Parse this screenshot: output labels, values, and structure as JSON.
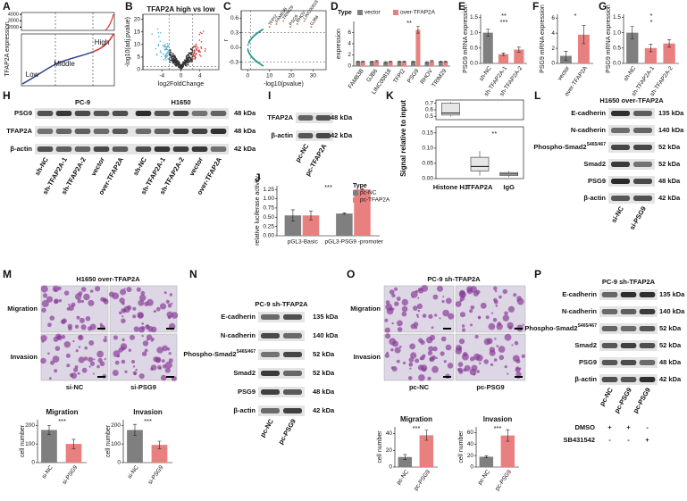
{
  "panels": {
    "A": {
      "letter": "A",
      "ylabel": "TFAP2A expression",
      "ylim": [
        1500,
        4300
      ],
      "yticks": [
        2000,
        3000,
        4000
      ],
      "groups": [
        "Low",
        "Middle",
        "High"
      ]
    },
    "B": {
      "letter": "B",
      "title": "TFAP2A high vs low",
      "xlabel": "log2FoldChange",
      "ylabel": "-log10(adj.pvalue)",
      "xlim": [
        -8,
        8
      ],
      "xticks": [
        -4,
        0,
        4
      ],
      "ylim": [
        0,
        22
      ],
      "yticks": [
        0,
        5,
        10,
        15,
        20
      ]
    },
    "C": {
      "letter": "C",
      "xlabel": "-log10(pvalue)",
      "ylabel": "r",
      "xlim": [
        -3,
        36
      ],
      "xticks": [
        0,
        10,
        20,
        30
      ],
      "ylim": [
        -0.45,
        0.75
      ],
      "yticks": [
        -0.3,
        {
          "value": 0,
          "label": "0.0"
        },
        0.3,
        0.6
      ],
      "genes": [
        "TFPI2",
        "FAM83B",
        "TRIM29",
        "PSG9",
        "RHOV",
        "LINC00818",
        "GJB6"
      ]
    },
    "D": {
      "letter": "D",
      "legend_title": "Type",
      "ylabel": "expression",
      "categories": [
        "FAM83B",
        "GJB6",
        "LINC00818",
        "TFPI2",
        "PSG9",
        "RHOV",
        "TRIM29"
      ],
      "series": [
        {
          "name": "vector",
          "color": "#7f7f7f",
          "values": [
            0.8,
            0.8,
            0.7,
            0.8,
            0.8,
            0.7,
            0.8
          ],
          "errors": [
            0.1,
            0.1,
            0.1,
            0.1,
            0.1,
            0.1,
            0.1
          ]
        },
        {
          "name": "over-TFAP2A",
          "color": "#e88080",
          "values": [
            0.8,
            0.9,
            0.8,
            0.8,
            6.5,
            0.9,
            0.8
          ],
          "errors": [
            0.1,
            0.1,
            0.1,
            0.1,
            0.6,
            0.1,
            0.1
          ]
        }
      ],
      "ylim": [
        0,
        8
      ],
      "yticks": [
        0,
        2,
        4,
        6
      ],
      "annotations": [
        "**"
      ]
    },
    "E": {
      "letter": "E",
      "ylabel": "PSG9 mRNA expression",
      "categories": [
        "sh-NC",
        "sh-TFAP2A-1",
        "sh-TFAP2A-2"
      ],
      "series": [
        {
          "colors": [
            "#7f7f7f",
            "#e88080",
            "#e88080"
          ],
          "values": [
            1.0,
            0.3,
            0.45
          ],
          "errors": [
            0.12,
            0.04,
            0.08
          ]
        }
      ],
      "ylim": [
        0,
        1.6
      ],
      "yticks": [
        {
          "value": 0,
          "label": "0.0"
        },
        0.5,
        {
          "value": 1,
          "label": "1.0"
        },
        1.5
      ],
      "annotations": [
        "**",
        "***"
      ]
    },
    "F": {
      "letter": "F",
      "ylabel": "PSG9 mRNA expression",
      "categories": [
        "vector",
        "over-TFAP2A"
      ],
      "series": [
        {
          "colors": [
            "#7f7f7f",
            "#e88080"
          ],
          "values": [
            1.0,
            3.8
          ],
          "errors": [
            0.6,
            1.2
          ]
        }
      ],
      "ylim": [
        0,
        6.5
      ],
      "yticks": [
        0,
        2,
        4,
        6
      ],
      "annotations": [
        "*"
      ]
    },
    "G": {
      "letter": "G",
      "ylabel": "PSG9 mRNA expression",
      "categories": [
        "sh-NC",
        "sh-TFAP2A-1",
        "sh-TFAP2A-2"
      ],
      "series": [
        {
          "colors": [
            "#7f7f7f",
            "#e88080",
            "#e88080"
          ],
          "values": [
            1.0,
            0.5,
            0.65
          ],
          "errors": [
            0.2,
            0.12,
            0.12
          ]
        }
      ],
      "ylim": [
        0,
        1.6
      ],
      "yticks": [
        {
          "value": 0,
          "label": "0.0"
        },
        0.5,
        {
          "value": 1,
          "label": "1.0"
        },
        1.5
      ],
      "annotations": [
        "*",
        "*"
      ]
    },
    "H": {
      "letter": "H",
      "groups": [
        {
          "name": "PC-9",
          "lanes": [
            "sh-NC",
            "sh-TFAP2A-1",
            "sh-TFAP2A-2",
            "vector",
            "over-TFAP2A"
          ]
        },
        {
          "name": "H1650",
          "lanes": [
            "sh-NC",
            "sh-TFAP2A-1",
            "sh-TFAP2A-2",
            "vector",
            "over-TFAP2A"
          ]
        }
      ],
      "rows": [
        {
          "label": "PSG9",
          "kda": "48 kDa"
        },
        {
          "label": "TFAP2A",
          "kda": "48 kDa"
        },
        {
          "label": "β-actin",
          "kda": "42 kDa"
        }
      ]
    },
    "I": {
      "letter": "I",
      "lanes": [
        "pc-NC",
        "pc-TFAP2A"
      ],
      "rows": [
        {
          "label": "TFAP2A",
          "kda": "48 kDa"
        },
        {
          "label": "β-actin",
          "kda": "42 kDa"
        }
      ]
    },
    "J": {
      "letter": "J",
      "legend_title": "Type",
      "ylabel": "relative luciferase activity",
      "categories": [
        "pGL3-Basic",
        "pGL3-PSG9 -promoter"
      ],
      "series": [
        {
          "name": "pc-NC",
          "color": "#7f7f7f",
          "values": [
            0.55,
            0.6
          ],
          "errors": [
            0.15,
            0.02
          ]
        },
        {
          "name": "pc-TFAP2A",
          "color": "#e88080",
          "values": [
            0.55,
            1.25
          ],
          "errors": [
            0.12,
            0.02
          ]
        }
      ],
      "ylim": [
        0,
        1.35
      ],
      "yticks": [
        {
          "value": 0,
          "label": "0.00"
        },
        0.25,
        {
          "value": 0.5,
          "label": "0.50"
        },
        0.75,
        {
          "value": 1,
          "label": "1.00"
        },
        1.25
      ],
      "annotations": [
        "***"
      ]
    },
    "K": {
      "letter": "K",
      "ylabel": "Signal relative to input",
      "categories": [
        "Histone H3",
        "TFAP2A",
        "IgG"
      ],
      "upper": {
        "ylim": [
          0.45,
          0.75
        ],
        "yticks": [
          0.5,
          0.6,
          0.7
        ]
      },
      "lower": {
        "ylim": [
          0,
          0.17
        ],
        "yticks": [
          {
            "value": 0,
            "label": "0.00"
          },
          0.05,
          {
            "value": 0.1,
            "label": "0.10"
          },
          0.15
        ]
      },
      "boxes": [
        {
          "min": 0.5,
          "q1": 0.52,
          "median": 0.55,
          "q3": 0.7,
          "max": 0.72
        },
        {
          "min": 0.01,
          "q1": 0.025,
          "median": 0.04,
          "q3": 0.07,
          "max": 0.09
        },
        {
          "min": 0.005,
          "q1": 0.01,
          "median": 0.015,
          "q3": 0.02,
          "max": 0.025
        }
      ],
      "annotations": [
        "**"
      ]
    },
    "L": {
      "letter": "L",
      "title": "H1650 over-TFAP2A",
      "lanes": [
        "si-NC",
        "si-PSG9"
      ],
      "rows": [
        {
          "label": "E-cadherin",
          "kda": "135 kDa"
        },
        {
          "label": "N-cadherin",
          "kda": "140 kDa"
        },
        {
          "label": "Phospho-Smad2",
          "sup": "S465/467",
          "kda": "52 kDa"
        },
        {
          "label": "Smad2",
          "kda": "52 kDa"
        },
        {
          "label": "PSG9",
          "kda": "48 kDa"
        },
        {
          "label": "β-actin",
          "kda": "42 kDa"
        }
      ]
    },
    "M": {
      "letter": "M",
      "title": "H1650 over-TFAP2A",
      "rows": [
        "Migration",
        "Invasion"
      ],
      "columns": [
        "si-NC",
        "si-PSG9"
      ],
      "charts": [
        {
          "title": "Migration",
          "ylabel": "cell number",
          "categories": [
            "si-NC",
            "si-PSG9"
          ],
          "series": [
            {
              "colors": [
                "#7f7f7f",
                "#e88080"
              ],
              "values": [
                175,
                100
              ],
              "errors": [
                25,
                25
              ]
            }
          ],
          "ylim": [
            0,
            230
          ],
          "yticks": [
            0,
            100,
            200
          ],
          "annotations": [
            "***"
          ]
        },
        {
          "title": "Invasion",
          "ylabel": "cell number",
          "categories": [
            "si-NC",
            "si-PSG9"
          ],
          "series": [
            {
              "colors": [
                "#7f7f7f",
                "#e88080"
              ],
              "values": [
                175,
                95
              ],
              "errors": [
                30,
                20
              ]
            }
          ],
          "ylim": [
            0,
            230
          ],
          "yticks": [
            0,
            100,
            200
          ],
          "annotations": [
            "***"
          ]
        }
      ]
    },
    "N": {
      "letter": "N",
      "title": "PC-9 sh-TFAP2A",
      "lanes": [
        "pc-NC",
        "pc-PSG9"
      ],
      "rows": [
        {
          "label": "E-cadherin",
          "kda": "135 kDa"
        },
        {
          "label": "N-cadherin",
          "kda": "140 kDa"
        },
        {
          "label": "Phospho-Smad2",
          "sup": "S465/467",
          "kda": "52 kDa"
        },
        {
          "label": "Smad2",
          "kda": "52 kDa"
        },
        {
          "label": "PSG9",
          "kda": "48 kDa"
        },
        {
          "label": "β-actin",
          "kda": "42 kDa"
        }
      ]
    },
    "O": {
      "letter": "O",
      "title": "PC-9 sh-TFAP2A",
      "rows": [
        "Migration",
        "Invasion"
      ],
      "columns": [
        "pc-NC",
        "pc-PSG9"
      ],
      "charts": [
        {
          "title": "Migration",
          "ylabel": "cell number",
          "categories": [
            "pc-NC",
            "pc-PSG9"
          ],
          "series": [
            {
              "colors": [
                "#7f7f7f",
                "#e88080"
              ],
              "values": [
                12,
                38
              ],
              "errors": [
                3,
                6
              ]
            }
          ],
          "ylim": [
            0,
            48
          ],
          "yticks": [
            0,
            20,
            40
          ],
          "annotations": [
            "***"
          ]
        },
        {
          "title": "Invasion",
          "ylabel": "cell number",
          "categories": [
            "pc-NC",
            "pc-PSG9"
          ],
          "series": [
            {
              "colors": [
                "#7f7f7f",
                "#e88080"
              ],
              "values": [
                18,
                55
              ],
              "errors": [
                2,
                10
              ]
            }
          ],
          "ylim": [
            0,
            70
          ],
          "yticks": [
            0,
            20,
            40,
            60
          ],
          "annotations": [
            "***"
          ]
        }
      ]
    },
    "P": {
      "letter": "P",
      "title": "PC-9 sh-TFAP2A",
      "lanes": [
        "pc-NC",
        "pc-PSG9",
        "pc-PSG9"
      ],
      "rows": [
        {
          "label": "E-cadherin",
          "kda": "135 kDa"
        },
        {
          "label": "N-cadherin",
          "kda": "140 kDa"
        },
        {
          "label": "Phospho-Smad2",
          "sup": "S465/467",
          "kda": "52 kDa"
        },
        {
          "label": "Smad2",
          "kda": "52 kDa"
        },
        {
          "label": "PSG9",
          "kda": "48 kDa"
        },
        {
          "label": "β-actin",
          "kda": "42 kDa"
        }
      ],
      "treatments": [
        {
          "name": "DMSO",
          "marks": [
            "+",
            "+",
            "-"
          ]
        },
        {
          "name": "SB431542",
          "marks": [
            "-",
            "-",
            "+"
          ]
        }
      ]
    }
  }
}
